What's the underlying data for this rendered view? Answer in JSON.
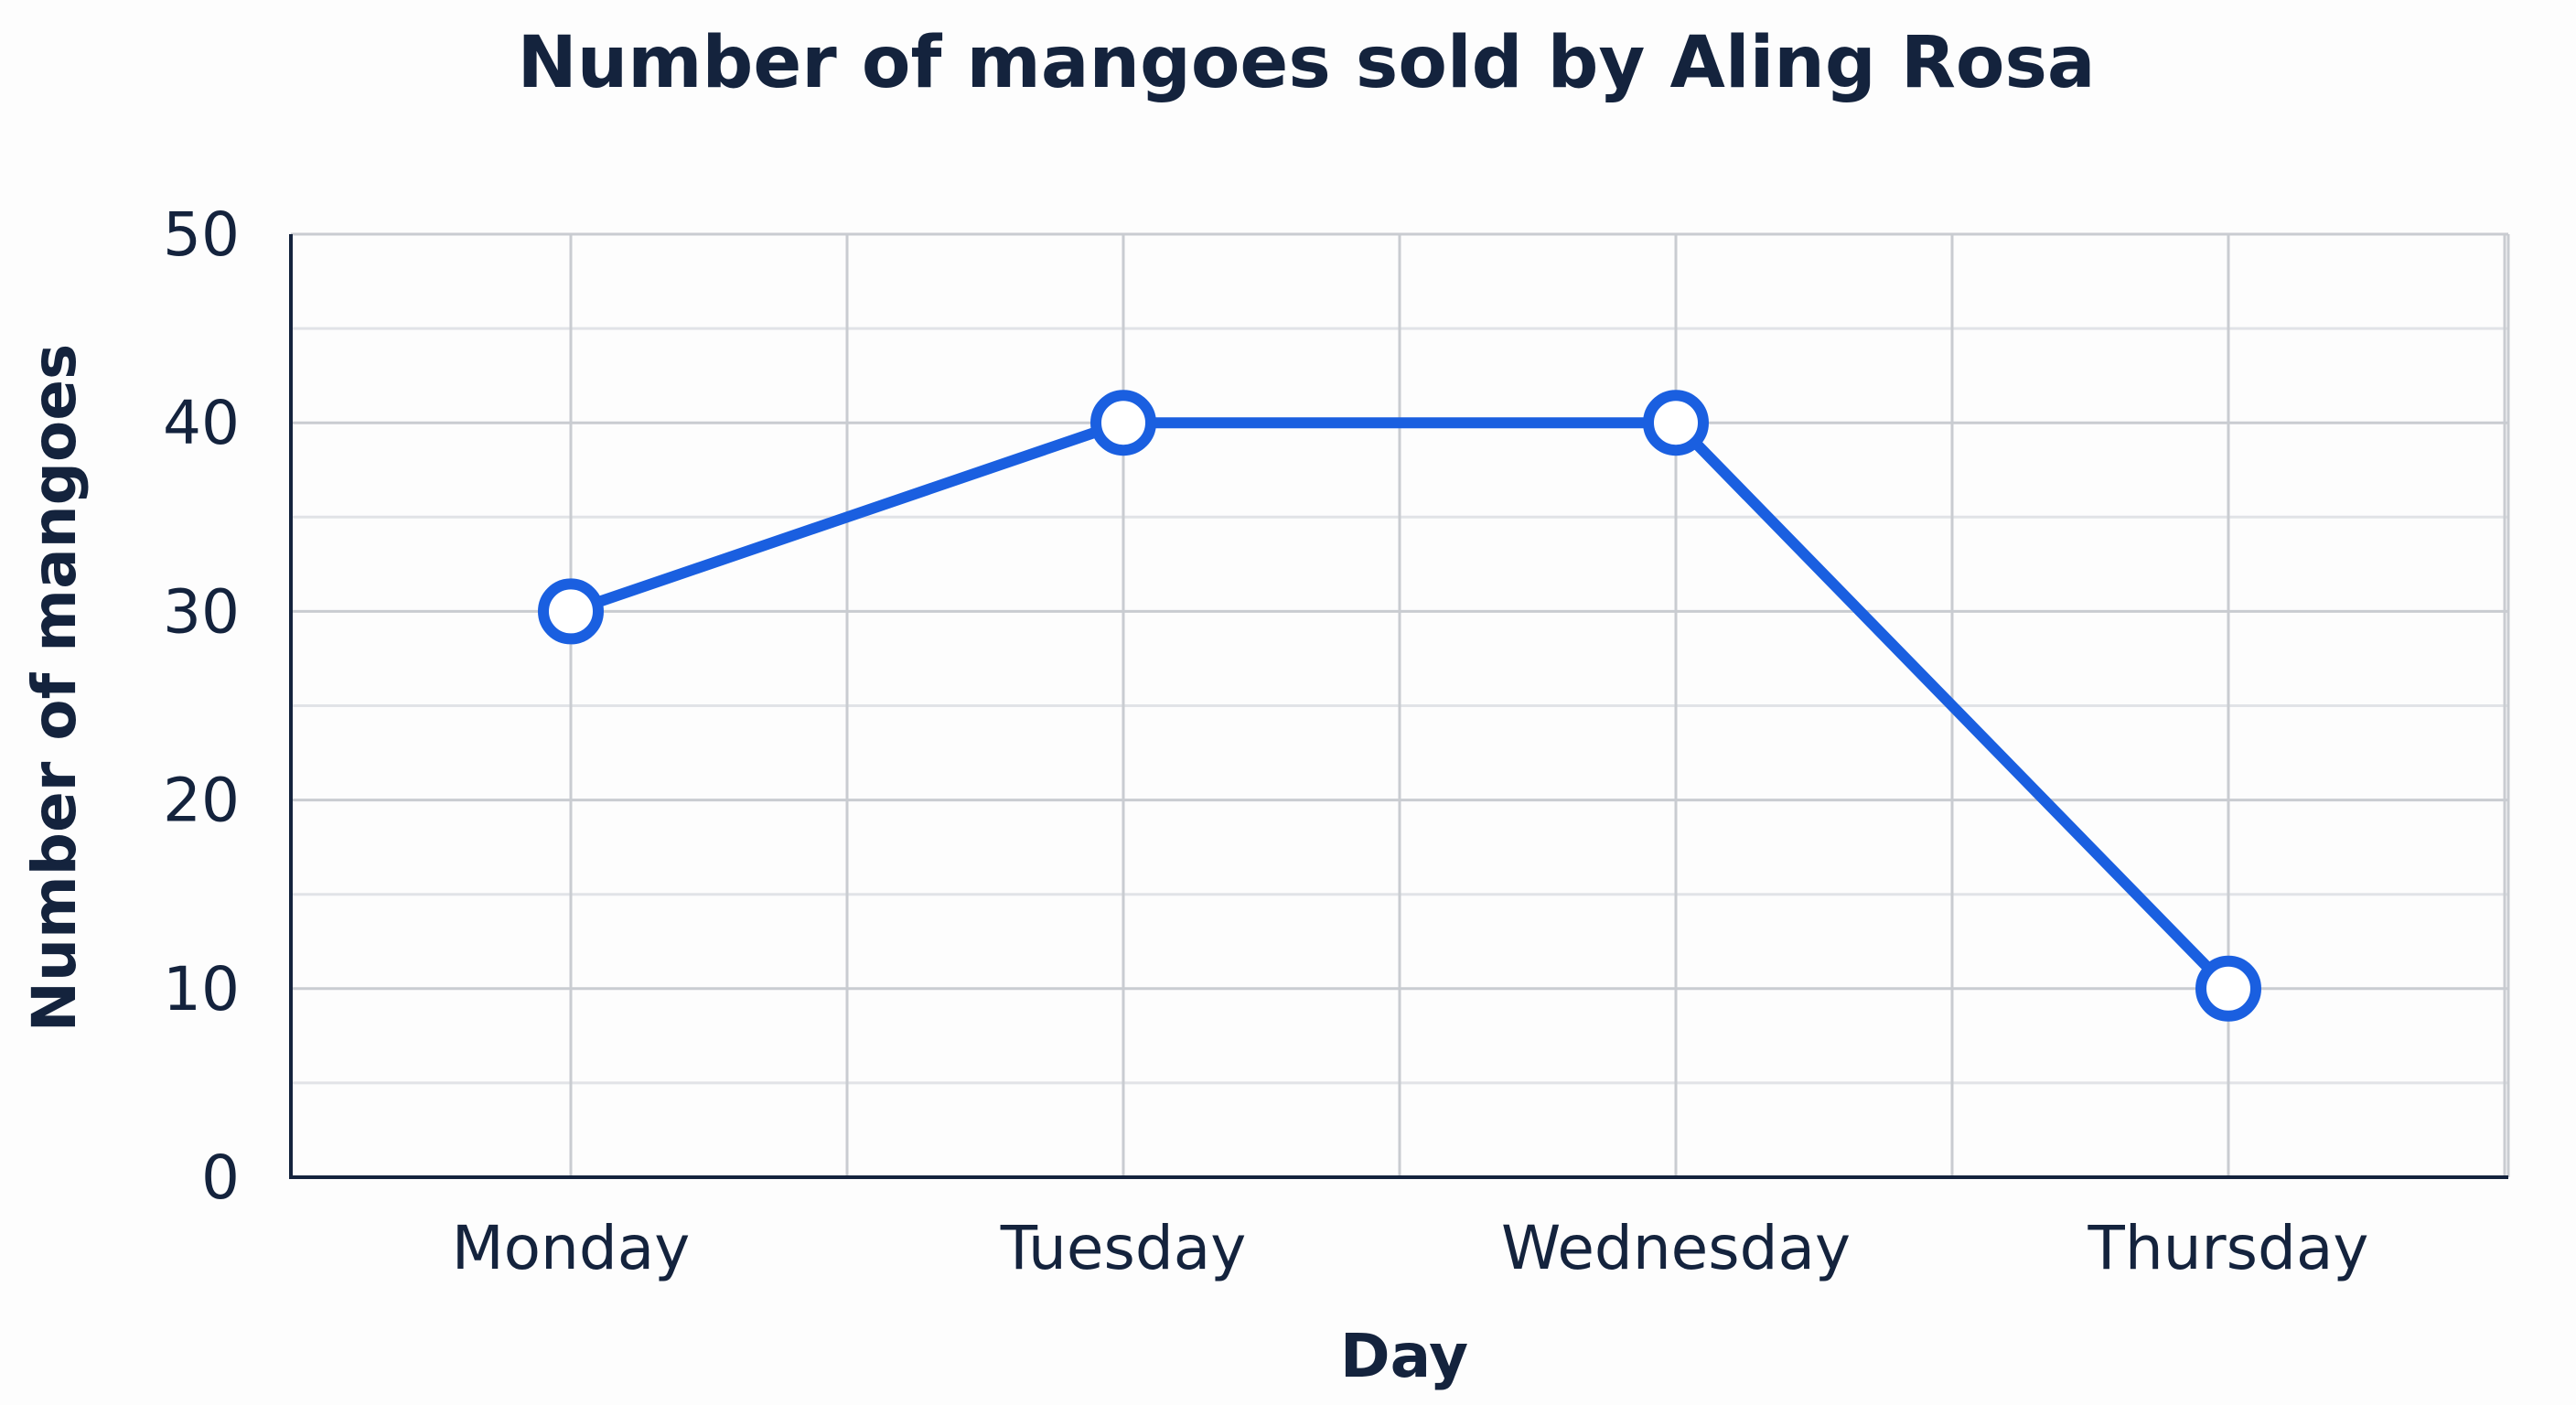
{
  "chart_data": {
    "type": "line",
    "title": "Number of mangoes sold by Aling Rosa",
    "xlabel": "Day",
    "ylabel": "Number of mangoes",
    "categories": [
      "Monday",
      "Tuesday",
      "Wednesday",
      "Thursday"
    ],
    "series": [
      {
        "values": [
          30,
          40,
          40,
          10
        ]
      }
    ],
    "ylim": [
      0,
      50
    ],
    "yticks": [
      "0",
      "10",
      "20",
      "30",
      "40",
      "50"
    ],
    "grid": true,
    "legend": "none",
    "colors": {
      "line": "#1a5fe0",
      "text": "#14233d",
      "marker_fill": "#ffffff"
    }
  }
}
